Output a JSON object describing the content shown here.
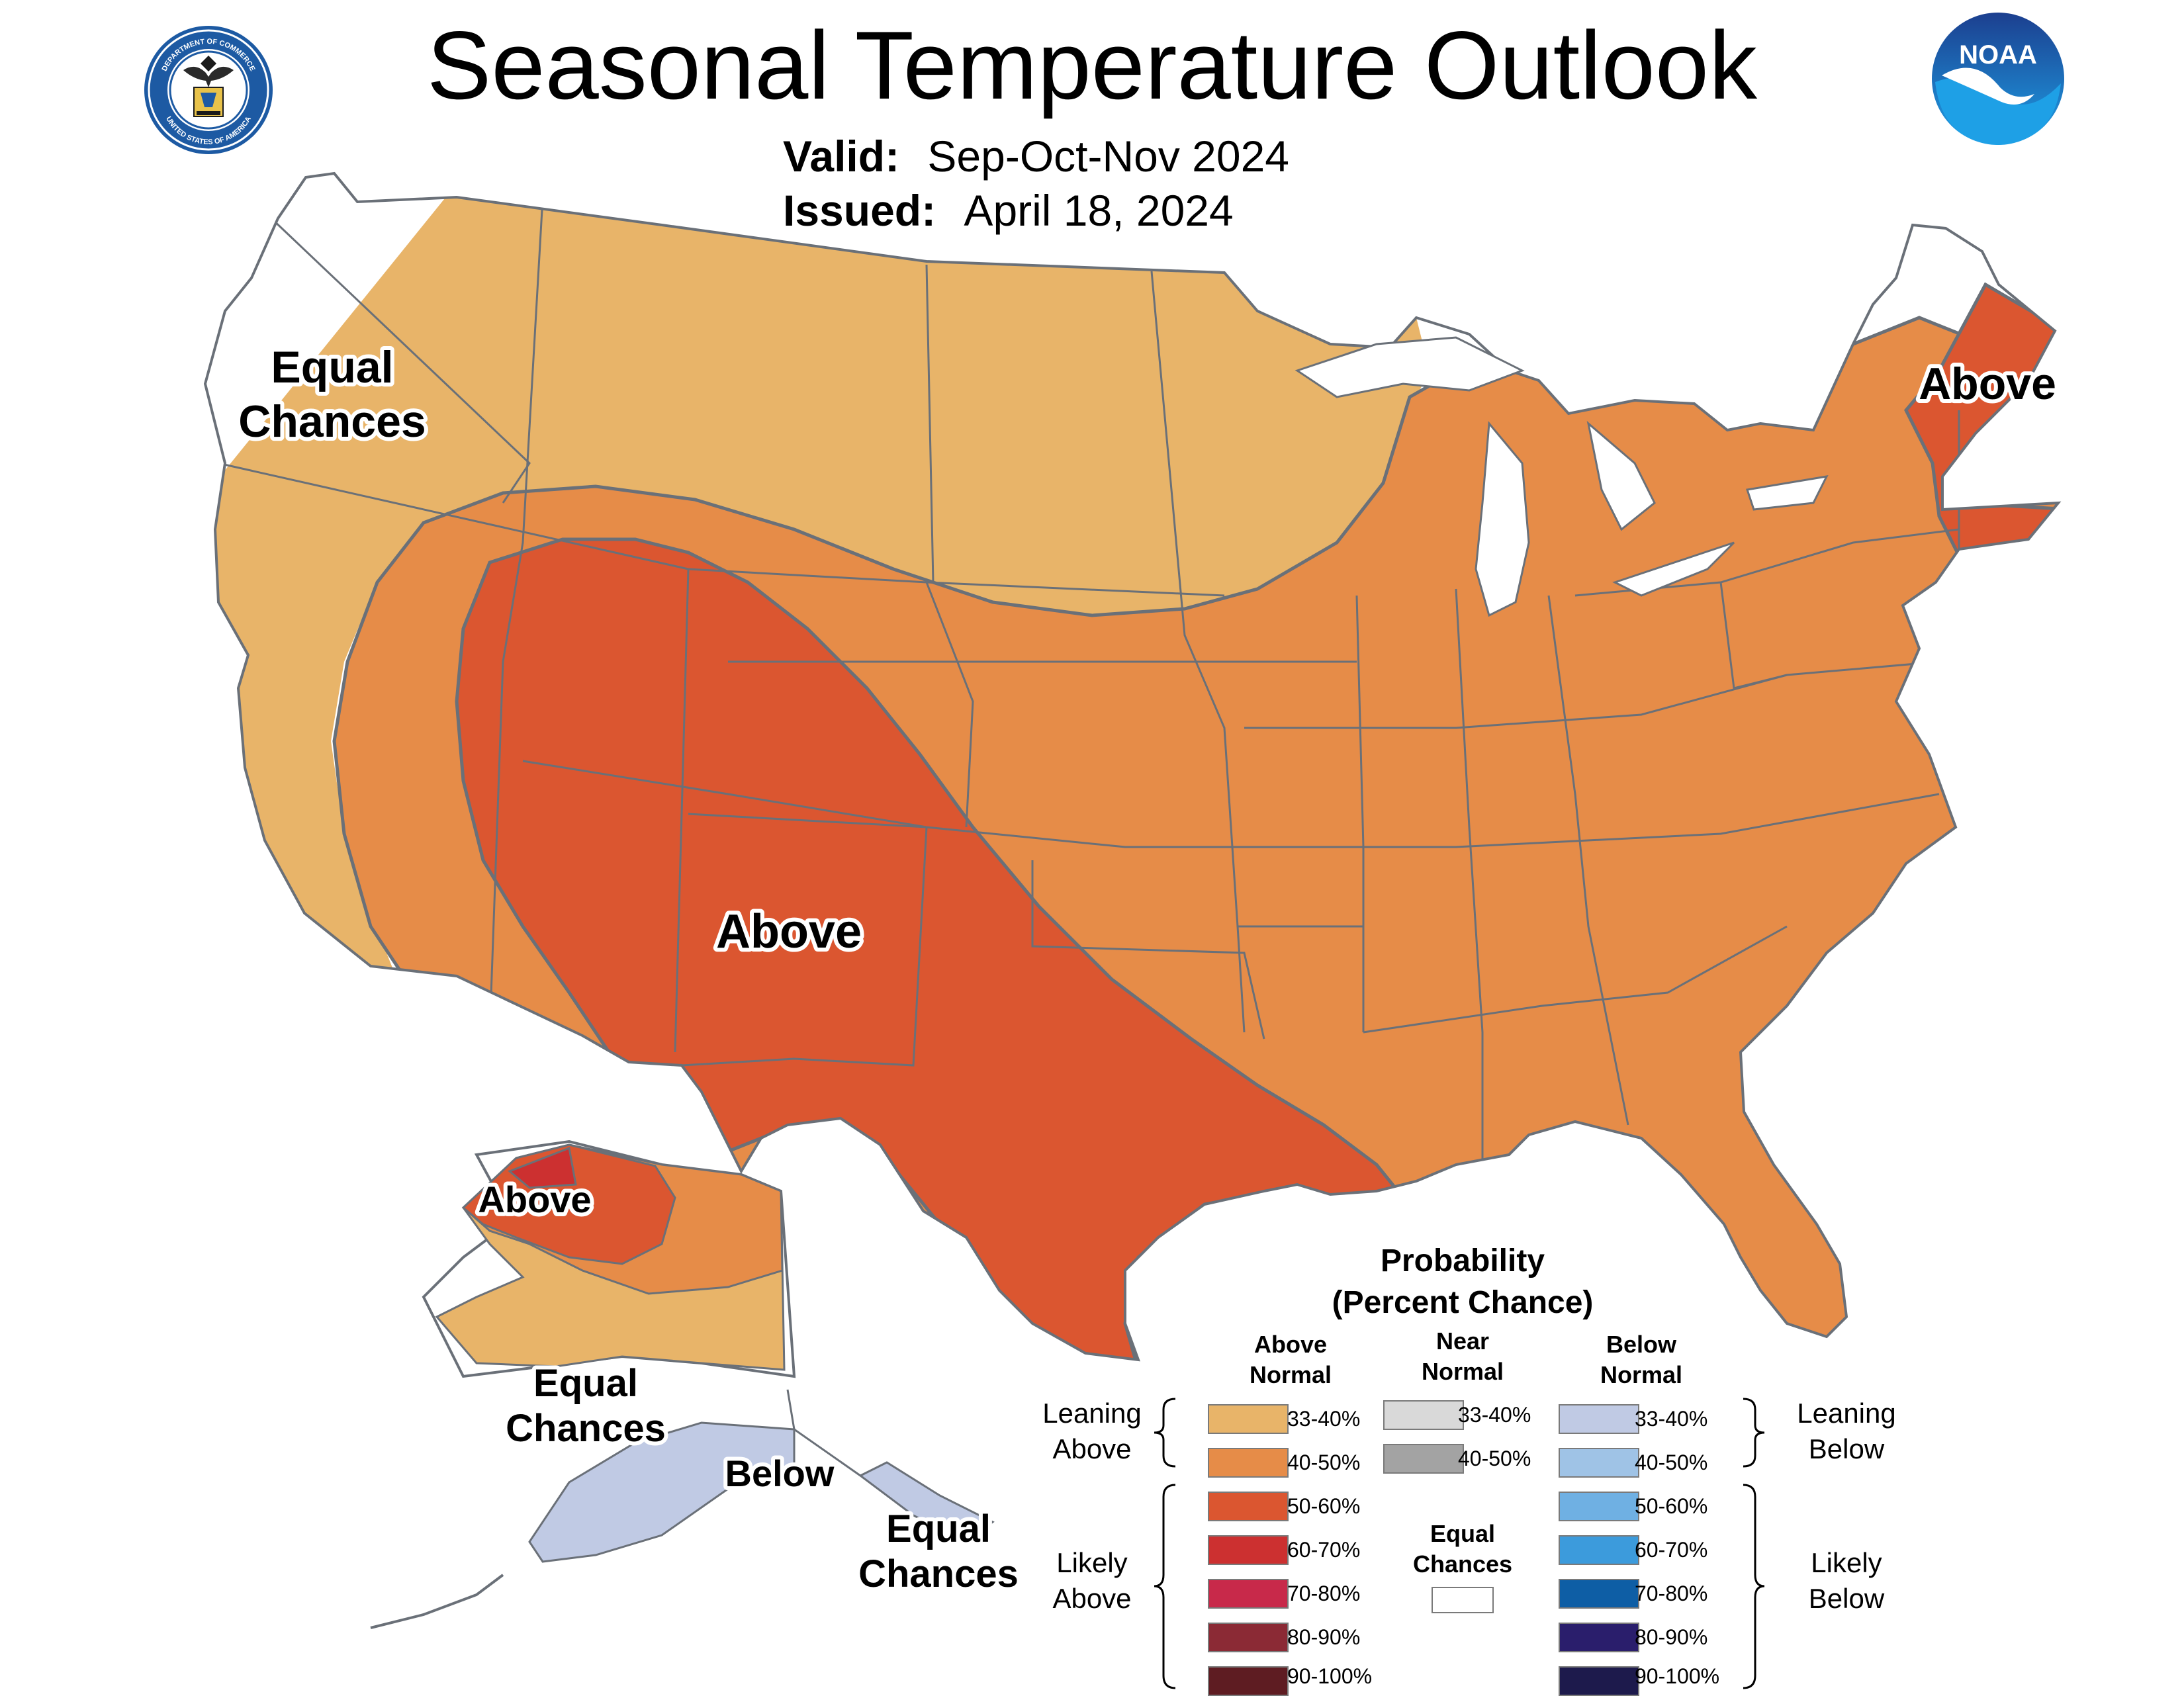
{
  "header": {
    "title": "Seasonal Temperature Outlook",
    "valid_label": "Valid:",
    "valid_value": "Sep-Oct-Nov 2024",
    "issued_label": "Issued:",
    "issued_value": "April 18, 2024"
  },
  "logos": {
    "commerce_seal": "department-of-commerce-seal",
    "commerce_seal_text_top": "DEPARTMENT OF COMMERCE",
    "commerce_seal_text_bottom": "UNITED STATES OF AMERICA",
    "noaa": "noaa-logo",
    "noaa_text": "NOAA"
  },
  "map": {
    "colors": {
      "lean_above": "#e8b469",
      "above_40_50": "#e68c48",
      "above_50_60": "#db5630",
      "above_60_70": "#cc3030",
      "below_33_40": "#c0cae4",
      "below_40_50": "#9fc3e6",
      "land_outline": "#6a7078",
      "equal_chances": "#ffffff"
    },
    "labels": {
      "west_equal_chances_line1": "Equal",
      "west_equal_chances_line2": "Chances",
      "southwest_above": "Above",
      "northeast_above": "Above",
      "alaska_above": "Above",
      "alaska_equal_chances_line1": "Equal",
      "alaska_equal_chances_line2": "Chances",
      "alaska_below": "Below",
      "southeast_alaska_equal_line1": "Equal",
      "southeast_alaska_equal_line2": "Chances"
    }
  },
  "legend": {
    "title_line1": "Probability",
    "title_line2": "(Percent Chance)",
    "above_header_line1": "Above",
    "above_header_line2": "Normal",
    "near_header_line1": "Near",
    "near_header_line2": "Normal",
    "below_header_line1": "Below",
    "below_header_line2": "Normal",
    "leaning_above_line1": "Leaning",
    "leaning_above_line2": "Above",
    "likely_above_line1": "Likely",
    "likely_above_line2": "Above",
    "leaning_below_line1": "Leaning",
    "leaning_below_line2": "Below",
    "likely_below_line1": "Likely",
    "likely_below_line2": "Below",
    "equal_chances_line1": "Equal",
    "equal_chances_line2": "Chances",
    "above": [
      {
        "label": "33-40%",
        "color": "#e8b469"
      },
      {
        "label": "40-50%",
        "color": "#e68c48"
      },
      {
        "label": "50-60%",
        "color": "#db5630"
      },
      {
        "label": "60-70%",
        "color": "#cc3030"
      },
      {
        "label": "70-80%",
        "color": "#c8294a"
      },
      {
        "label": "80-90%",
        "color": "#8b2a35"
      },
      {
        "label": "90-100%",
        "color": "#5e1c22"
      }
    ],
    "near": [
      {
        "label": "33-40%",
        "color": "#d9d9d9"
      },
      {
        "label": "40-50%",
        "color": "#a3a3a3"
      }
    ],
    "below": [
      {
        "label": "33-40%",
        "color": "#c0cae4"
      },
      {
        "label": "40-50%",
        "color": "#9fc3e6"
      },
      {
        "label": "50-60%",
        "color": "#6fb0e3"
      },
      {
        "label": "60-70%",
        "color": "#3c9bdc"
      },
      {
        "label": "70-80%",
        "color": "#0e5ea5"
      },
      {
        "label": "80-90%",
        "color": "#2a1e6c"
      },
      {
        "label": "90-100%",
        "color": "#1d1a4c"
      }
    ],
    "equal_color": "#ffffff"
  }
}
